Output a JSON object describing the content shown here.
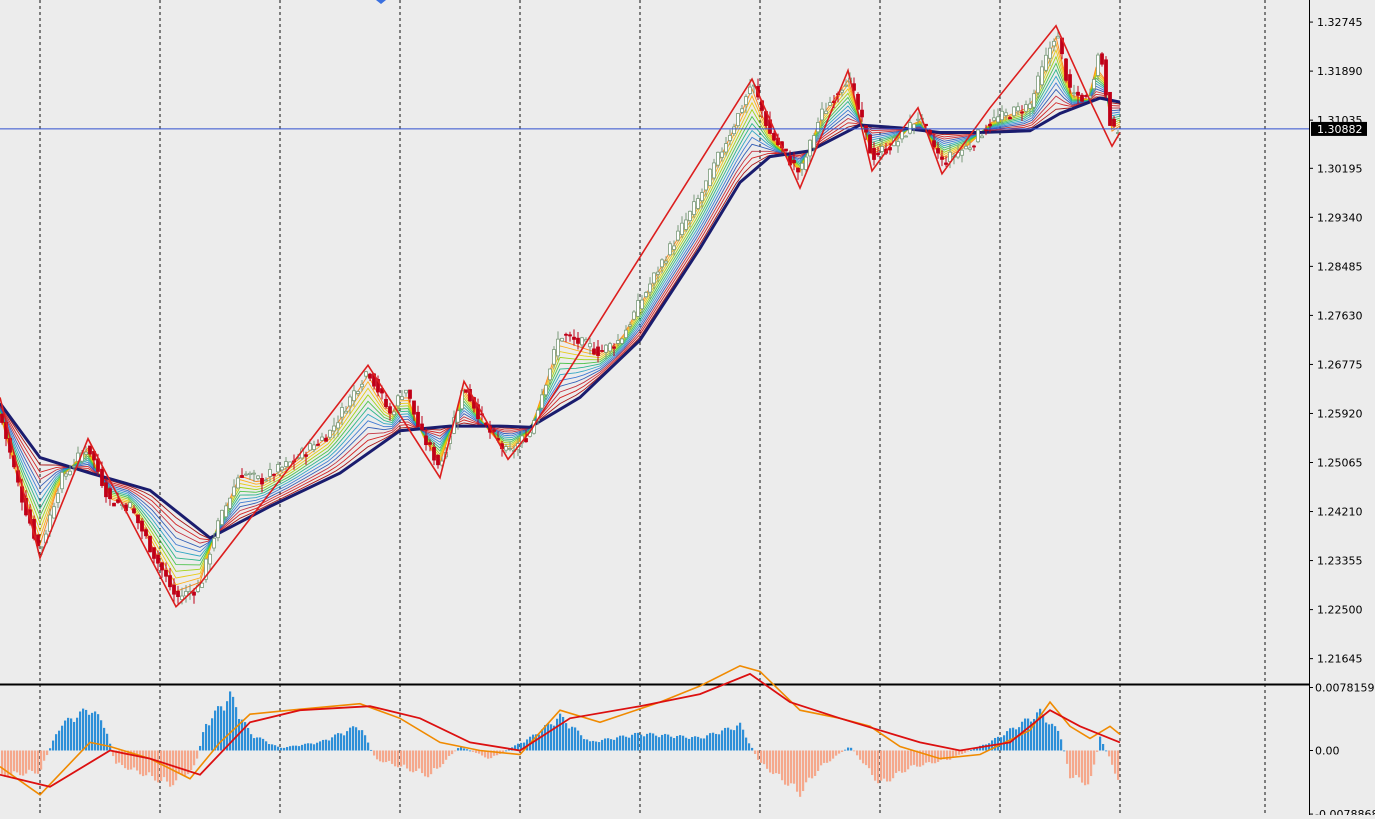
{
  "colors": {
    "background": "#ececec",
    "panel_separator": "#000000",
    "grid": "#111111",
    "candle_up": "#7a9a7a",
    "candle_down": "#c00018",
    "zigzag": "#dc1e1e",
    "ma_slow": "#1a1c6e",
    "ribbon": [
      "#ff7a00",
      "#ffa800",
      "#e8c800",
      "#9ad000",
      "#3cbf3c",
      "#18b080",
      "#20a0c0",
      "#3070d0",
      "#2050b0",
      "#c02030",
      "#d01010",
      "#a00000"
    ],
    "price_line": "#3050d0",
    "current_price_bg": "#000000",
    "current_price_text": "#ffffff",
    "hist_pos": "#2d8fd8",
    "hist_neg": "#f5a88c",
    "macd_line": "#f08a00",
    "signal_line": "#dc1010",
    "marker": "#3a70e0"
  },
  "chart_data": [
    {
      "type": "candlestick",
      "ylim": [
        1.2122,
        1.3313
      ],
      "y_ticks": [
        "1.32745",
        "1.31890",
        "1.31035",
        "1.30195",
        "1.29340",
        "1.28485",
        "1.27630",
        "1.26775",
        "1.25920",
        "1.25065",
        "1.24210",
        "1.23355",
        "1.22500",
        "1.21645"
      ],
      "current_price": 1.30882,
      "current_price_label": "1.30882",
      "x_grid_count": 11,
      "overlays": [
        "zigzag",
        "moving-average ribbon",
        "slow moving average"
      ],
      "zigzag_points": [
        [
          0,
          1.262
        ],
        [
          40,
          1.234
        ],
        [
          88,
          1.2548
        ],
        [
          176,
          1.2255
        ],
        [
          200,
          1.2295
        ],
        [
          368,
          1.2676
        ],
        [
          440,
          1.248
        ],
        [
          464,
          1.2648
        ],
        [
          508,
          1.2512
        ],
        [
          530,
          1.256
        ],
        [
          752,
          1.3175
        ],
        [
          800,
          1.2985
        ],
        [
          848,
          1.319
        ],
        [
          872,
          1.3015
        ],
        [
          918,
          1.3125
        ],
        [
          942,
          1.301
        ],
        [
          990,
          1.3125
        ],
        [
          1056,
          1.3268
        ],
        [
          1088,
          1.3145
        ],
        [
          1112,
          1.3058
        ],
        [
          1120,
          1.3082
        ]
      ],
      "slow_ma_points": [
        [
          0,
          1.261
        ],
        [
          40,
          1.2515
        ],
        [
          90,
          1.2488
        ],
        [
          150,
          1.2458
        ],
        [
          210,
          1.2375
        ],
        [
          270,
          1.243
        ],
        [
          340,
          1.2488
        ],
        [
          400,
          1.2562
        ],
        [
          450,
          1.257
        ],
        [
          500,
          1.257
        ],
        [
          530,
          1.2568
        ],
        [
          580,
          1.262
        ],
        [
          640,
          1.272
        ],
        [
          700,
          1.288
        ],
        [
          740,
          1.2995
        ],
        [
          770,
          1.304
        ],
        [
          810,
          1.305
        ],
        [
          860,
          1.3095
        ],
        [
          900,
          1.309
        ],
        [
          940,
          1.3082
        ],
        [
          980,
          1.3082
        ],
        [
          1030,
          1.3085
        ],
        [
          1060,
          1.3115
        ],
        [
          1100,
          1.3142
        ],
        [
          1120,
          1.3135
        ]
      ],
      "candle_path": [
        [
          0,
          1.259
        ],
        [
          20,
          1.2455
        ],
        [
          40,
          1.235
        ],
        [
          60,
          1.2475
        ],
        [
          88,
          1.2535
        ],
        [
          110,
          1.244
        ],
        [
          130,
          1.243
        ],
        [
          150,
          1.236
        ],
        [
          176,
          1.227
        ],
        [
          200,
          1.229
        ],
        [
          215,
          1.2385
        ],
        [
          240,
          1.249
        ],
        [
          260,
          1.2475
        ],
        [
          290,
          1.2505
        ],
        [
          330,
          1.256
        ],
        [
          368,
          1.267
        ],
        [
          390,
          1.259
        ],
        [
          405,
          1.264
        ],
        [
          420,
          1.256
        ],
        [
          440,
          1.25
        ],
        [
          464,
          1.264
        ],
        [
          485,
          1.257
        ],
        [
          508,
          1.252
        ],
        [
          530,
          1.256
        ],
        [
          560,
          1.273
        ],
        [
          600,
          1.27
        ],
        [
          620,
          1.272
        ],
        [
          660,
          1.285
        ],
        [
          700,
          1.297
        ],
        [
          740,
          1.312
        ],
        [
          752,
          1.317
        ],
        [
          770,
          1.308
        ],
        [
          800,
          1.301
        ],
        [
          820,
          1.311
        ],
        [
          848,
          1.318
        ],
        [
          872,
          1.304
        ],
        [
          900,
          1.307
        ],
        [
          918,
          1.311
        ],
        [
          942,
          1.303
        ],
        [
          970,
          1.306
        ],
        [
          990,
          1.31
        ],
        [
          1030,
          1.313
        ],
        [
          1056,
          1.326
        ],
        [
          1070,
          1.315
        ],
        [
          1088,
          1.314
        ],
        [
          1100,
          1.323
        ],
        [
          1112,
          1.308
        ],
        [
          1120,
          1.309
        ]
      ]
    },
    {
      "type": "macd",
      "ylim": [
        -0.008,
        0.008
      ],
      "y_ticks": [
        "0.0078159",
        "0.00",
        "-0.0078868"
      ],
      "y_tick_values": [
        0.0078159,
        0,
        -0.0078868
      ],
      "histogram_profile": [
        [
          0,
          -0.003
        ],
        [
          40,
          -0.0025
        ],
        [
          60,
          0.003
        ],
        [
          90,
          0.005
        ],
        [
          105,
          0.003
        ],
        [
          115,
          -0.0015
        ],
        [
          170,
          -0.004
        ],
        [
          195,
          -0.002
        ],
        [
          205,
          0.003
        ],
        [
          230,
          0.0065
        ],
        [
          250,
          0.002
        ],
        [
          280,
          0.0003
        ],
        [
          320,
          0.001
        ],
        [
          360,
          0.003
        ],
        [
          375,
          -0.001
        ],
        [
          430,
          -0.003
        ],
        [
          460,
          0.0005
        ],
        [
          490,
          -0.001
        ],
        [
          530,
          0.0015
        ],
        [
          560,
          0.004
        ],
        [
          590,
          0.001
        ],
        [
          640,
          0.002
        ],
        [
          700,
          0.0015
        ],
        [
          740,
          0.003
        ],
        [
          760,
          -0.0015
        ],
        [
          800,
          -0.005
        ],
        [
          820,
          -0.002
        ],
        [
          850,
          0.0005
        ],
        [
          880,
          -0.004
        ],
        [
          910,
          -0.002
        ],
        [
          950,
          -0.001
        ],
        [
          990,
          0.001
        ],
        [
          1040,
          0.0045
        ],
        [
          1060,
          0.002
        ],
        [
          1070,
          -0.003
        ],
        [
          1090,
          -0.004
        ],
        [
          1100,
          0.0015
        ],
        [
          1110,
          -0.001
        ],
        [
          1120,
          -0.004
        ]
      ],
      "macd_line": [
        [
          0,
          -0.002
        ],
        [
          40,
          -0.0055
        ],
        [
          90,
          0.001
        ],
        [
          110,
          0.0005
        ],
        [
          150,
          -0.001
        ],
        [
          190,
          -0.0035
        ],
        [
          220,
          0.001
        ],
        [
          250,
          0.0045
        ],
        [
          290,
          0.005
        ],
        [
          360,
          0.0058
        ],
        [
          400,
          0.004
        ],
        [
          440,
          0.001
        ],
        [
          480,
          0.0
        ],
        [
          520,
          -0.0005
        ],
        [
          560,
          0.005
        ],
        [
          600,
          0.0035
        ],
        [
          660,
          0.006
        ],
        [
          700,
          0.008
        ],
        [
          740,
          0.0105
        ],
        [
          760,
          0.0098
        ],
        [
          800,
          0.005
        ],
        [
          840,
          0.004
        ],
        [
          870,
          0.003
        ],
        [
          900,
          0.0005
        ],
        [
          940,
          -0.001
        ],
        [
          980,
          -0.0005
        ],
        [
          1030,
          0.0025
        ],
        [
          1050,
          0.006
        ],
        [
          1070,
          0.003
        ],
        [
          1090,
          0.0015
        ],
        [
          1110,
          0.003
        ],
        [
          1120,
          0.002
        ]
      ],
      "signal_line": [
        [
          0,
          -0.003
        ],
        [
          50,
          -0.0045
        ],
        [
          110,
          0.0
        ],
        [
          150,
          -0.001
        ],
        [
          200,
          -0.003
        ],
        [
          250,
          0.0035
        ],
        [
          300,
          0.005
        ],
        [
          370,
          0.0055
        ],
        [
          420,
          0.004
        ],
        [
          470,
          0.001
        ],
        [
          520,
          0.0
        ],
        [
          570,
          0.004
        ],
        [
          640,
          0.0055
        ],
        [
          700,
          0.007
        ],
        [
          750,
          0.0095
        ],
        [
          790,
          0.006
        ],
        [
          840,
          0.004
        ],
        [
          880,
          0.0025
        ],
        [
          920,
          0.001
        ],
        [
          960,
          0.0
        ],
        [
          1010,
          0.001
        ],
        [
          1050,
          0.005
        ],
        [
          1080,
          0.003
        ],
        [
          1110,
          0.0015
        ],
        [
          1120,
          0.001
        ]
      ]
    }
  ]
}
